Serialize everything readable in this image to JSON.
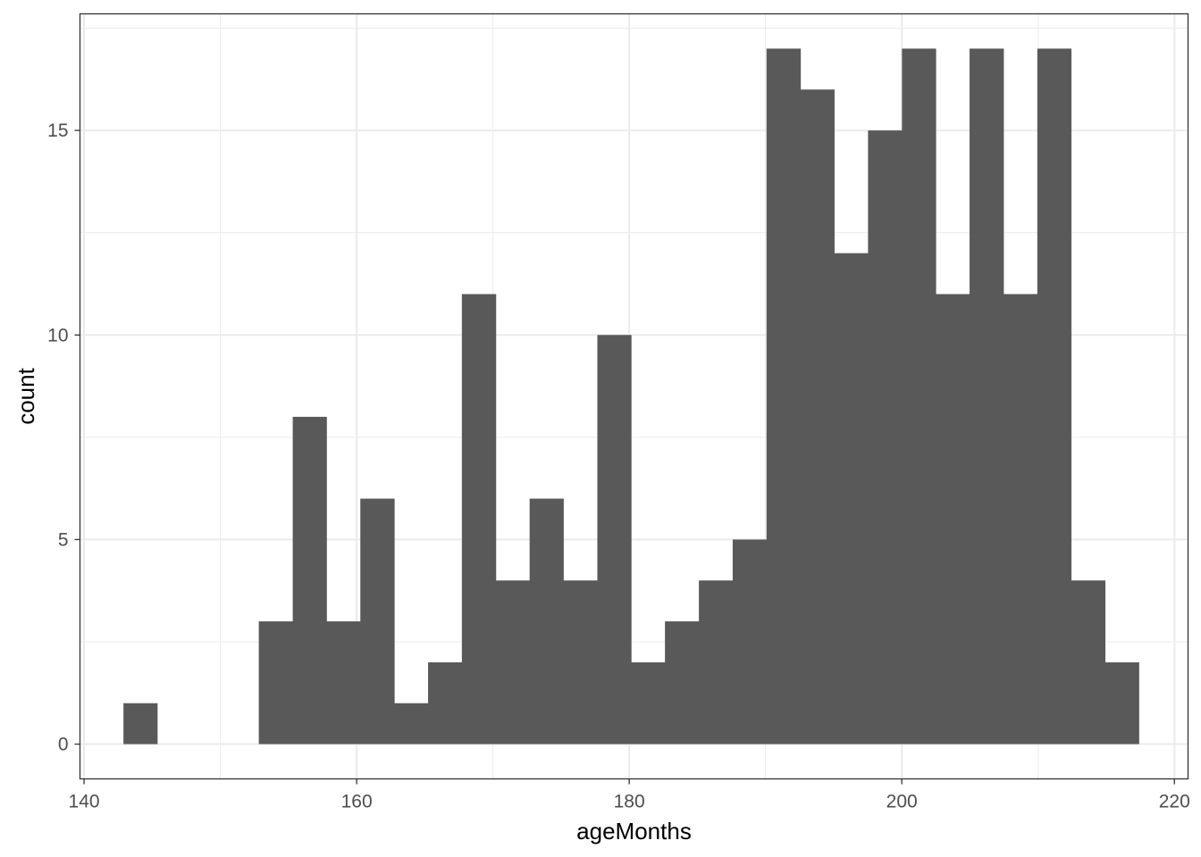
{
  "chart_data": {
    "type": "bar",
    "subtype": "histogram",
    "xlabel": "ageMonths",
    "ylabel": "count",
    "xlim": [
      139.7,
      221.0
    ],
    "ylim": [
      -0.85,
      17.85
    ],
    "x_ticks": [
      140,
      160,
      180,
      200,
      220
    ],
    "y_ticks": [
      0,
      5,
      10,
      15
    ],
    "grid": true,
    "legend": "none",
    "bar_color": "#595959",
    "bin_width": 2.483,
    "bins": [
      {
        "start": 142.89,
        "end": 145.37,
        "count": 1
      },
      {
        "start": 145.37,
        "end": 147.86,
        "count": 0
      },
      {
        "start": 147.86,
        "end": 150.34,
        "count": 0
      },
      {
        "start": 150.34,
        "end": 152.82,
        "count": 0
      },
      {
        "start": 152.82,
        "end": 155.31,
        "count": 3
      },
      {
        "start": 155.31,
        "end": 157.79,
        "count": 8
      },
      {
        "start": 157.79,
        "end": 160.27,
        "count": 3
      },
      {
        "start": 160.27,
        "end": 162.76,
        "count": 6
      },
      {
        "start": 162.76,
        "end": 165.24,
        "count": 1
      },
      {
        "start": 165.24,
        "end": 167.72,
        "count": 2
      },
      {
        "start": 167.72,
        "end": 170.21,
        "count": 11
      },
      {
        "start": 170.21,
        "end": 172.69,
        "count": 4
      },
      {
        "start": 172.69,
        "end": 175.17,
        "count": 6
      },
      {
        "start": 175.17,
        "end": 177.66,
        "count": 4
      },
      {
        "start": 177.66,
        "end": 180.14,
        "count": 10
      },
      {
        "start": 180.14,
        "end": 182.62,
        "count": 2
      },
      {
        "start": 182.62,
        "end": 185.11,
        "count": 3
      },
      {
        "start": 185.11,
        "end": 187.59,
        "count": 4
      },
      {
        "start": 187.59,
        "end": 190.07,
        "count": 5
      },
      {
        "start": 190.07,
        "end": 192.56,
        "count": 17
      },
      {
        "start": 192.56,
        "end": 195.04,
        "count": 16
      },
      {
        "start": 195.04,
        "end": 197.52,
        "count": 12
      },
      {
        "start": 197.52,
        "end": 200.01,
        "count": 15
      },
      {
        "start": 200.01,
        "end": 202.49,
        "count": 17
      },
      {
        "start": 202.49,
        "end": 204.97,
        "count": 11
      },
      {
        "start": 204.97,
        "end": 207.46,
        "count": 17
      },
      {
        "start": 207.46,
        "end": 209.94,
        "count": 11
      },
      {
        "start": 209.94,
        "end": 212.42,
        "count": 17
      },
      {
        "start": 212.42,
        "end": 214.91,
        "count": 4
      },
      {
        "start": 214.91,
        "end": 217.39,
        "count": 2
      }
    ]
  }
}
